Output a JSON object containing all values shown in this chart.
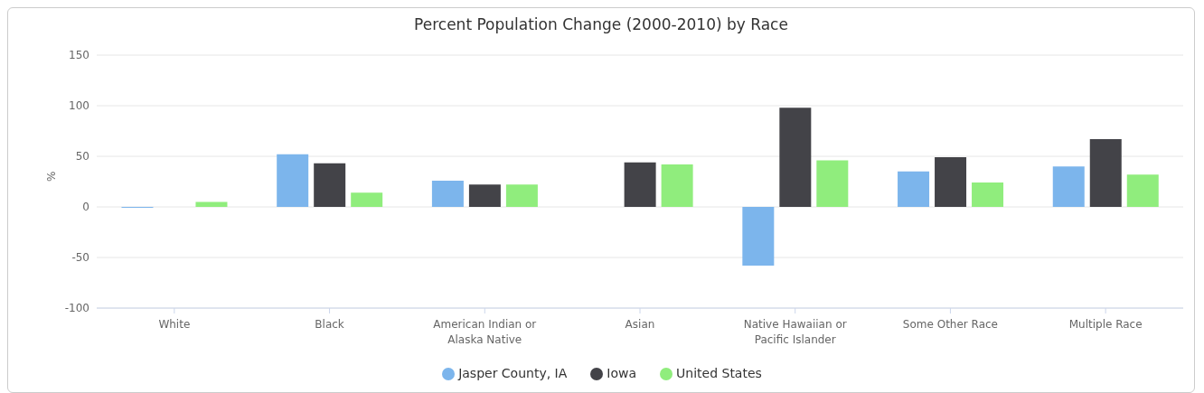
{
  "chart_data": {
    "type": "bar",
    "title": "Percent Population Change (2000-2010) by Race",
    "ylabel": "%",
    "categories": [
      "White",
      "Black",
      "American Indian or Alaska Native",
      "Asian",
      "Native Hawaiian or Pacific Islander",
      "Some Other Race",
      "Multiple Race"
    ],
    "series": [
      {
        "name": "Jasper County, IA",
        "color": "#7cb5ec",
        "values": [
          -1,
          52,
          26,
          0,
          -58,
          35,
          40
        ]
      },
      {
        "name": "Iowa",
        "color": "#434348",
        "values": [
          null,
          43,
          22,
          44,
          98,
          49,
          67
        ]
      },
      {
        "name": "United States",
        "color": "#90ed7d",
        "values": [
          5,
          14,
          22,
          42,
          46,
          24,
          32
        ]
      }
    ],
    "ylim": [
      -100,
      150
    ],
    "yticks": [
      -100,
      -50,
      0,
      50,
      100,
      150
    ],
    "grid": "y",
    "legend": "bottom"
  }
}
